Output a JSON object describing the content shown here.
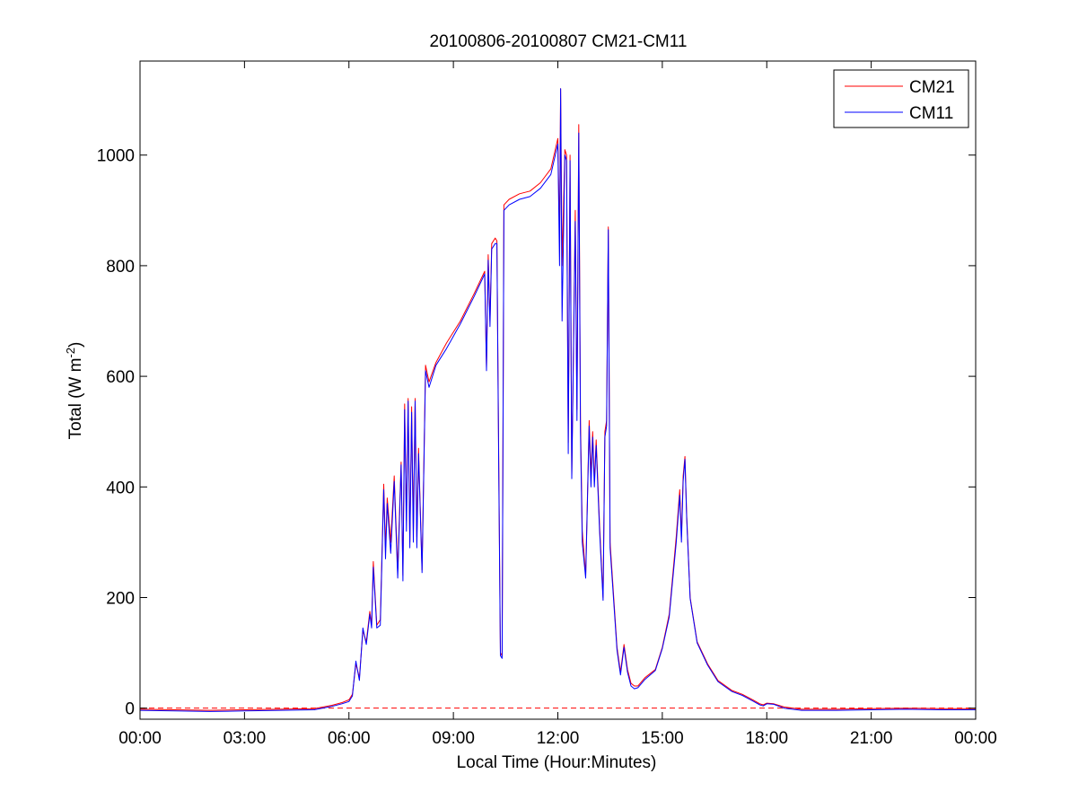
{
  "chart_data": {
    "type": "line",
    "title": "20100806-20100807 CM21-CM11",
    "xlabel": "Local Time (Hour:Minutes)",
    "ylabel_main": "Total (W m",
    "ylabel_sup": "-2",
    "ylabel_tail": ")",
    "xlim": [
      0,
      24
    ],
    "ylim": [
      -20,
      1170
    ],
    "xticks": [
      0,
      3,
      6,
      9,
      12,
      15,
      18,
      21,
      24
    ],
    "xticklabels": [
      "00:00",
      "03:00",
      "06:00",
      "09:00",
      "12:00",
      "15:00",
      "18:00",
      "21:00",
      "00:00"
    ],
    "yticks": [
      0,
      200,
      400,
      600,
      800,
      1000
    ],
    "yticklabels": [
      "0",
      "200",
      "400",
      "600",
      "800",
      "1000"
    ],
    "grid": false,
    "legend_position": "top-right",
    "reference_line": {
      "y": 0,
      "color": "#ff0000",
      "style": "dashed"
    },
    "series": [
      {
        "name": "CM21",
        "color": "#ff0000",
        "points": [
          [
            0,
            -2
          ],
          [
            1,
            -3
          ],
          [
            2,
            -4
          ],
          [
            3,
            -3
          ],
          [
            4,
            -2
          ],
          [
            5,
            -1
          ],
          [
            5.5,
            5
          ],
          [
            5.8,
            10
          ],
          [
            6,
            15
          ],
          [
            6.1,
            25
          ],
          [
            6.2,
            80
          ],
          [
            6.3,
            55
          ],
          [
            6.4,
            140
          ],
          [
            6.5,
            120
          ],
          [
            6.6,
            175
          ],
          [
            6.65,
            150
          ],
          [
            6.7,
            265
          ],
          [
            6.8,
            150
          ],
          [
            6.9,
            160
          ],
          [
            7,
            405
          ],
          [
            7.05,
            290
          ],
          [
            7.1,
            380
          ],
          [
            7.2,
            300
          ],
          [
            7.3,
            420
          ],
          [
            7.4,
            250
          ],
          [
            7.5,
            445
          ],
          [
            7.55,
            240
          ],
          [
            7.6,
            550
          ],
          [
            7.65,
            340
          ],
          [
            7.7,
            560
          ],
          [
            7.75,
            300
          ],
          [
            7.8,
            545
          ],
          [
            7.85,
            320
          ],
          [
            7.9,
            560
          ],
          [
            7.95,
            310
          ],
          [
            8,
            470
          ],
          [
            8.1,
            250
          ],
          [
            8.2,
            620
          ],
          [
            8.3,
            590
          ],
          [
            8.5,
            625
          ],
          [
            8.8,
            660
          ],
          [
            9.2,
            700
          ],
          [
            9.6,
            750
          ],
          [
            9.9,
            790
          ],
          [
            9.95,
            615
          ],
          [
            10,
            820
          ],
          [
            10.05,
            700
          ],
          [
            10.1,
            840
          ],
          [
            10.2,
            850
          ],
          [
            10.25,
            845
          ],
          [
            10.3,
            460
          ],
          [
            10.35,
            100
          ],
          [
            10.4,
            95
          ],
          [
            10.45,
            910
          ],
          [
            10.6,
            920
          ],
          [
            10.9,
            930
          ],
          [
            11.2,
            935
          ],
          [
            11.5,
            950
          ],
          [
            11.8,
            975
          ],
          [
            12,
            1030
          ],
          [
            12.05,
            850
          ],
          [
            12.08,
            1120
          ],
          [
            12.12,
            800
          ],
          [
            12.2,
            1010
          ],
          [
            12.25,
            1000
          ],
          [
            12.3,
            480
          ],
          [
            12.35,
            1000
          ],
          [
            12.4,
            420
          ],
          [
            12.5,
            900
          ],
          [
            12.55,
            540
          ],
          [
            12.6,
            1055
          ],
          [
            12.65,
            520
          ],
          [
            12.7,
            320
          ],
          [
            12.8,
            240
          ],
          [
            12.9,
            520
          ],
          [
            12.95,
            420
          ],
          [
            13,
            500
          ],
          [
            13.05,
            410
          ],
          [
            13.1,
            485
          ],
          [
            13.2,
            330
          ],
          [
            13.3,
            200
          ],
          [
            13.35,
            500
          ],
          [
            13.4,
            520
          ],
          [
            13.45,
            870
          ],
          [
            13.5,
            300
          ],
          [
            13.7,
            110
          ],
          [
            13.8,
            65
          ],
          [
            13.9,
            115
          ],
          [
            14,
            70
          ],
          [
            14.1,
            45
          ],
          [
            14.2,
            40
          ],
          [
            14.3,
            40
          ],
          [
            14.5,
            55
          ],
          [
            14.8,
            70
          ],
          [
            15,
            110
          ],
          [
            15.2,
            170
          ],
          [
            15.4,
            310
          ],
          [
            15.5,
            395
          ],
          [
            15.55,
            310
          ],
          [
            15.6,
            420
          ],
          [
            15.65,
            455
          ],
          [
            15.7,
            350
          ],
          [
            15.8,
            200
          ],
          [
            16,
            120
          ],
          [
            16.3,
            80
          ],
          [
            16.6,
            50
          ],
          [
            17,
            32
          ],
          [
            17.3,
            25
          ],
          [
            17.6,
            15
          ],
          [
            17.8,
            8
          ],
          [
            17.9,
            6
          ],
          [
            18,
            9
          ],
          [
            18.2,
            8
          ],
          [
            18.5,
            2
          ],
          [
            19,
            -2
          ],
          [
            20,
            -2
          ],
          [
            21,
            -1
          ],
          [
            22,
            0
          ],
          [
            23,
            -1
          ],
          [
            24,
            -1
          ]
        ]
      },
      {
        "name": "CM11",
        "color": "#0000ff",
        "points": [
          [
            0,
            -4
          ],
          [
            1,
            -5
          ],
          [
            2,
            -6
          ],
          [
            3,
            -5
          ],
          [
            4,
            -4
          ],
          [
            5,
            -3
          ],
          [
            5.5,
            3
          ],
          [
            5.8,
            8
          ],
          [
            6,
            12
          ],
          [
            6.1,
            22
          ],
          [
            6.2,
            85
          ],
          [
            6.3,
            50
          ],
          [
            6.4,
            145
          ],
          [
            6.5,
            115
          ],
          [
            6.6,
            170
          ],
          [
            6.65,
            145
          ],
          [
            6.7,
            255
          ],
          [
            6.8,
            145
          ],
          [
            6.9,
            150
          ],
          [
            7,
            395
          ],
          [
            7.05,
            270
          ],
          [
            7.1,
            370
          ],
          [
            7.2,
            280
          ],
          [
            7.3,
            410
          ],
          [
            7.4,
            235
          ],
          [
            7.5,
            440
          ],
          [
            7.55,
            230
          ],
          [
            7.6,
            540
          ],
          [
            7.65,
            320
          ],
          [
            7.7,
            555
          ],
          [
            7.75,
            290
          ],
          [
            7.8,
            535
          ],
          [
            7.85,
            300
          ],
          [
            7.9,
            555
          ],
          [
            7.95,
            290
          ],
          [
            8,
            460
          ],
          [
            8.1,
            245
          ],
          [
            8.2,
            610
          ],
          [
            8.3,
            580
          ],
          [
            8.5,
            620
          ],
          [
            8.8,
            650
          ],
          [
            9.2,
            695
          ],
          [
            9.6,
            745
          ],
          [
            9.9,
            785
          ],
          [
            9.95,
            610
          ],
          [
            10,
            810
          ],
          [
            10.05,
            690
          ],
          [
            10.1,
            830
          ],
          [
            10.2,
            840
          ],
          [
            10.25,
            840
          ],
          [
            10.3,
            440
          ],
          [
            10.35,
            95
          ],
          [
            10.4,
            90
          ],
          [
            10.45,
            900
          ],
          [
            10.6,
            910
          ],
          [
            10.9,
            920
          ],
          [
            11.2,
            925
          ],
          [
            11.5,
            940
          ],
          [
            11.8,
            965
          ],
          [
            12,
            1020
          ],
          [
            12.05,
            800
          ],
          [
            12.08,
            1120
          ],
          [
            12.12,
            700
          ],
          [
            12.2,
            1000
          ],
          [
            12.25,
            990
          ],
          [
            12.3,
            460
          ],
          [
            12.35,
            990
          ],
          [
            12.4,
            415
          ],
          [
            12.5,
            880
          ],
          [
            12.55,
            520
          ],
          [
            12.6,
            1040
          ],
          [
            12.65,
            500
          ],
          [
            12.7,
            300
          ],
          [
            12.8,
            235
          ],
          [
            12.9,
            510
          ],
          [
            12.95,
            400
          ],
          [
            13,
            490
          ],
          [
            13.05,
            400
          ],
          [
            13.1,
            475
          ],
          [
            13.2,
            320
          ],
          [
            13.3,
            195
          ],
          [
            13.35,
            490
          ],
          [
            13.4,
            510
          ],
          [
            13.45,
            865
          ],
          [
            13.5,
            290
          ],
          [
            13.7,
            105
          ],
          [
            13.8,
            60
          ],
          [
            13.9,
            110
          ],
          [
            14,
            65
          ],
          [
            14.1,
            40
          ],
          [
            14.2,
            35
          ],
          [
            14.3,
            37
          ],
          [
            14.5,
            52
          ],
          [
            14.8,
            68
          ],
          [
            15,
            108
          ],
          [
            15.2,
            165
          ],
          [
            15.4,
            300
          ],
          [
            15.5,
            385
          ],
          [
            15.55,
            300
          ],
          [
            15.6,
            410
          ],
          [
            15.65,
            450
          ],
          [
            15.7,
            345
          ],
          [
            15.8,
            198
          ],
          [
            16,
            118
          ],
          [
            16.3,
            78
          ],
          [
            16.6,
            48
          ],
          [
            17,
            30
          ],
          [
            17.3,
            23
          ],
          [
            17.6,
            13
          ],
          [
            17.8,
            6
          ],
          [
            17.9,
            4
          ],
          [
            18,
            8
          ],
          [
            18.2,
            7
          ],
          [
            18.5,
            0
          ],
          [
            19,
            -4
          ],
          [
            20,
            -4
          ],
          [
            21,
            -3
          ],
          [
            22,
            -2
          ],
          [
            23,
            -3
          ],
          [
            24,
            -3
          ]
        ]
      }
    ]
  }
}
